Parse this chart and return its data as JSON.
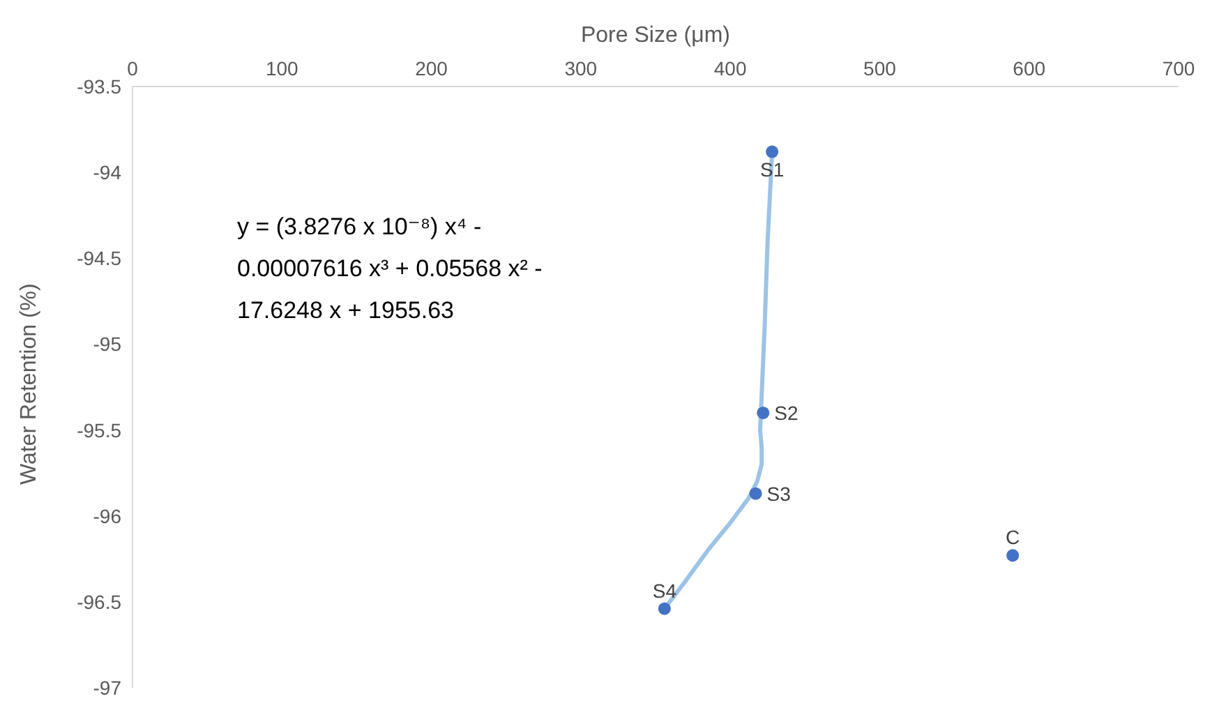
{
  "chart_data": {
    "type": "scatter",
    "xlabel": "Pore Size (μm)",
    "ylabel": "Water Retention (%)",
    "xlim": [
      0,
      700
    ],
    "xticks": [
      0,
      100,
      200,
      300,
      400,
      500,
      600,
      700
    ],
    "ylim": [
      -97,
      -93.5
    ],
    "yticks": [
      -97,
      -96.5,
      -96,
      -95.5,
      -95,
      -94.5,
      -94,
      -93.5
    ],
    "grid": false,
    "legend": false,
    "marker": "circle",
    "series": [
      {
        "type": "line",
        "marker": "none",
        "color": "#9dc3e6",
        "x": [
          356,
          370,
          385,
          400,
          412,
          418,
          421,
          421,
          420,
          421,
          423,
          425,
          428
        ],
        "values": [
          -96.54,
          -96.38,
          -96.2,
          -96.04,
          -95.9,
          -95.8,
          -95.7,
          -95.6,
          -95.5,
          -95.3,
          -94.9,
          -94.4,
          -93.88
        ]
      },
      {
        "color": "#4472c4",
        "x": [
          428,
          422,
          417,
          356,
          589
        ],
        "values": [
          -93.88,
          -95.4,
          -95.87,
          -96.54,
          -96.23
        ]
      }
    ],
    "annotations": [
      {
        "text": "S1",
        "x": 428,
        "y": -93.88
      },
      {
        "text": "S2",
        "x": 422,
        "y": -95.4
      },
      {
        "text": "S3",
        "x": 417,
        "y": -95.87
      },
      {
        "text": "S4",
        "x": 356,
        "y": -96.54
      },
      {
        "text": "C",
        "x": 589,
        "y": -96.23
      },
      "y = (3.8276 x 10⁻⁸) x⁴  - 0.00007616 x³ + 0.05568 x² - 17.6248 x + 1955.63"
    ]
  }
}
